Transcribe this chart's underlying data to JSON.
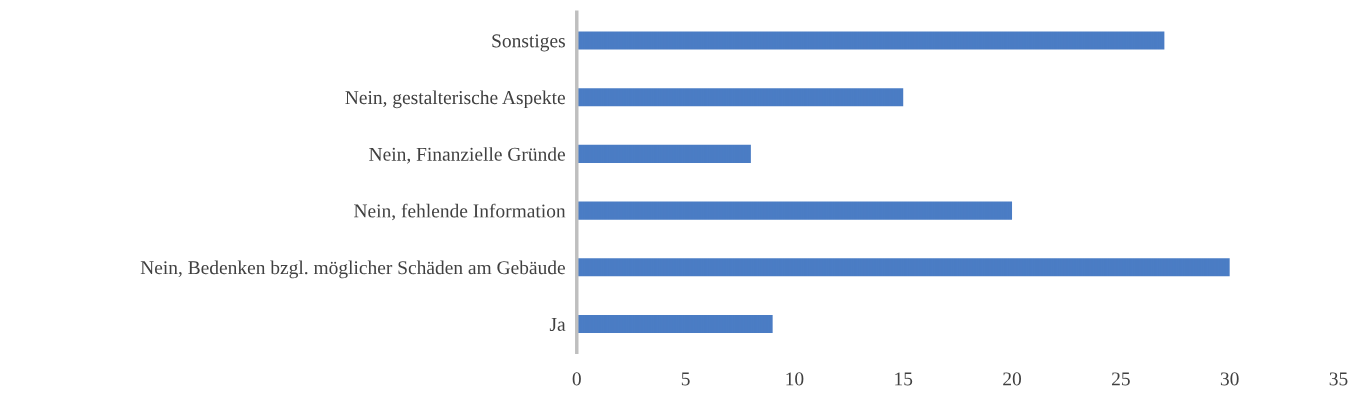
{
  "chart_data": {
    "type": "bar",
    "orientation": "horizontal",
    "categories": [
      "Sonstiges",
      "Nein, gestalterische Aspekte",
      "Nein, Finanzielle Gründe",
      "Nein, fehlende Information",
      "Nein, Bedenken bzgl. möglicher Schäden am Gebäude",
      "Ja"
    ],
    "values": [
      27,
      15,
      8,
      20,
      30,
      9
    ],
    "color": "#4a7cc4",
    "xlim": [
      0,
      35
    ],
    "xticks": [
      0,
      5,
      10,
      15,
      20,
      25,
      30,
      35
    ],
    "grid": false,
    "legend": false
  }
}
